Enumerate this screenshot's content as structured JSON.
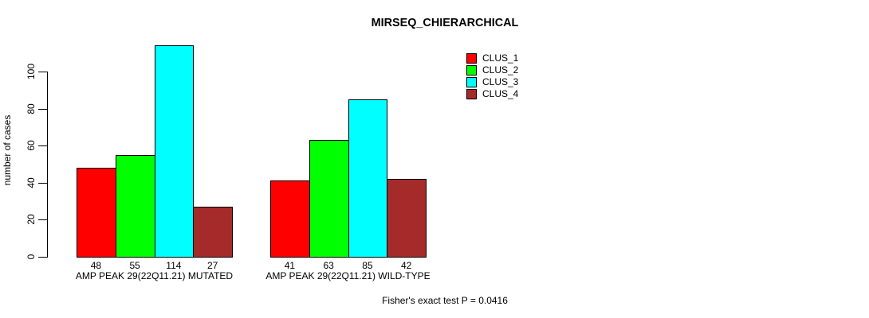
{
  "chart": {
    "title": "MIRSEQ_CHIERARCHICAL",
    "y_axis_label": "number of cases",
    "footnote": "Fisher's exact test P = 0.0416"
  },
  "chart_data": {
    "type": "bar",
    "title": "MIRSEQ_CHIERARCHICAL",
    "xlabel": "",
    "ylabel": "number of cases",
    "ylim": [
      0,
      100
    ],
    "yticks": [
      0,
      20,
      40,
      60,
      80,
      100
    ],
    "grid": false,
    "legend_position": "top-right",
    "bar_value_labels": true,
    "categories": [
      "AMP PEAK 29(22Q11.21) MUTATED",
      "AMP PEAK 29(22Q11.21) WILD-TYPE"
    ],
    "series": [
      {
        "name": "CLUS_1",
        "color": "#ff0000",
        "values": [
          48,
          41
        ]
      },
      {
        "name": "CLUS_2",
        "color": "#00ff00",
        "values": [
          55,
          63
        ]
      },
      {
        "name": "CLUS_3",
        "color": "#00ffff",
        "values": [
          114,
          85
        ]
      },
      {
        "name": "CLUS_4",
        "color": "#a52a2a",
        "values": [
          27,
          42
        ]
      }
    ],
    "annotation": "Fisher's exact test P = 0.0416"
  }
}
